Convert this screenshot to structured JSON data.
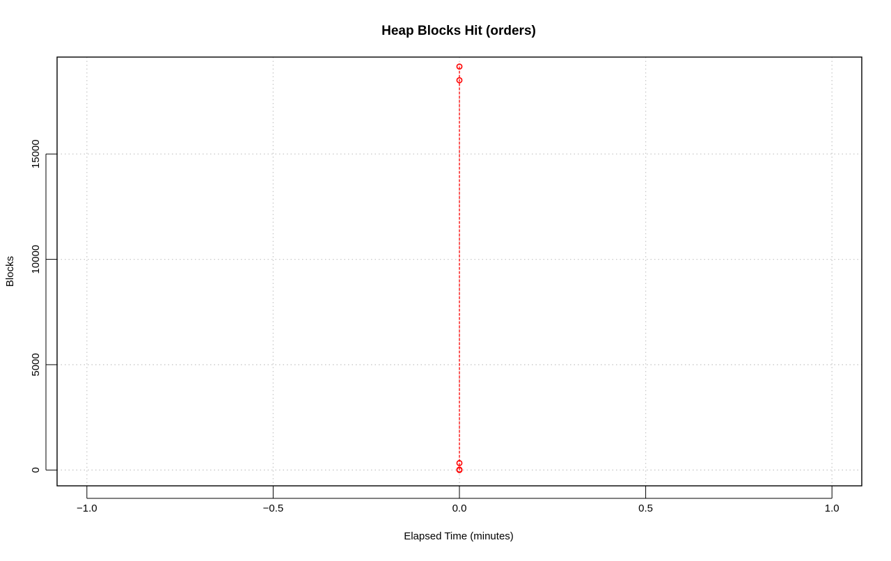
{
  "chart_data": {
    "type": "scatter",
    "title": "Heap Blocks Hit (orders)",
    "xlabel": "Elapsed Time (minutes)",
    "ylabel": "Blocks",
    "xlim": [
      -1.08,
      1.08
    ],
    "ylim": [
      -750,
      19600
    ],
    "x_ticks": [
      -1.0,
      -0.5,
      0.0,
      0.5,
      1.0
    ],
    "x_tick_labels": [
      "−1.0",
      "−0.5",
      "0.0",
      "0.5",
      "1.0"
    ],
    "y_ticks": [
      0,
      5000,
      10000,
      15000
    ],
    "y_tick_labels": [
      "0",
      "5000",
      "10000",
      "15000"
    ],
    "grid": true,
    "legend": "none",
    "series": [
      {
        "color": "#ff0000",
        "style": "points-and-dashed-line",
        "points": [
          {
            "x": 0.0,
            "y": 19150
          },
          {
            "x": 0.0,
            "y": 18500
          },
          {
            "x": 0.0,
            "y": 330
          },
          {
            "x": 0.0,
            "y": 20
          },
          {
            "x": 0.0,
            "y": 0
          }
        ]
      }
    ]
  }
}
